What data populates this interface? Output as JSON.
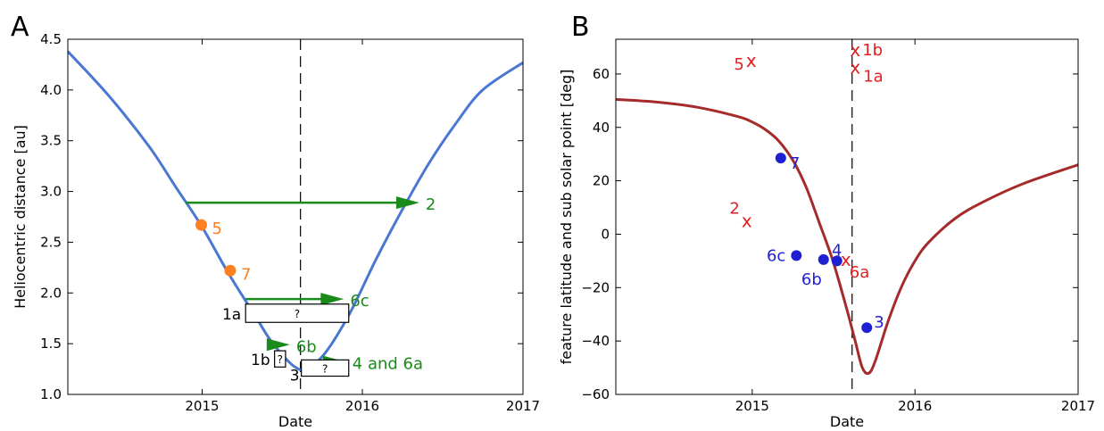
{
  "chart_data": [
    {
      "panel_label": "A",
      "type": "line",
      "xlabel": "Date",
      "ylabel": "Heliocentric distance [au]",
      "xlim": [
        "2014-03-01",
        "2017-01-01"
      ],
      "ylim": [
        1.0,
        4.5
      ],
      "x_ticks": [
        {
          "date": "2015-01-01",
          "label": "2015"
        },
        {
          "date": "2016-01-01",
          "label": "2016"
        },
        {
          "date": "2017-01-01",
          "label": "2017"
        }
      ],
      "y_ticks": [
        "1.0",
        "1.5",
        "2.0",
        "2.5",
        "3.0",
        "3.5",
        "4.0",
        "4.5"
      ],
      "grid": false,
      "series": [
        {
          "color": "#4a77d4",
          "points": [
            [
              "2014-03-01",
              4.38
            ],
            [
              "2014-06-01",
              3.95
            ],
            [
              "2014-09-01",
              3.45
            ],
            [
              "2014-11-01",
              3.05
            ],
            [
              "2015-01-01",
              2.65
            ],
            [
              "2015-03-01",
              2.2
            ],
            [
              "2015-05-01",
              1.78
            ],
            [
              "2015-06-15",
              1.48
            ],
            [
              "2015-08-13",
              1.243
            ],
            [
              "2015-10-01",
              1.37
            ],
            [
              "2015-12-01",
              1.78
            ],
            [
              "2016-02-01",
              2.33
            ],
            [
              "2016-04-01",
              2.82
            ],
            [
              "2016-06-01",
              3.28
            ],
            [
              "2016-08-01",
              3.67
            ],
            [
              "2016-10-01",
              4.0
            ],
            [
              "2017-01-01",
              4.27
            ]
          ]
        }
      ],
      "perihelion_line": "2015-08-13",
      "points": [
        {
          "label": "5",
          "date": "2014-12-30",
          "y": 2.67,
          "color": "#ff8020"
        },
        {
          "label": "7",
          "date": "2015-03-06",
          "y": 2.22,
          "color": "#ff8020"
        }
      ],
      "arrows": [
        {
          "label": "2",
          "start": "2014-11-25",
          "end": "2016-05-10",
          "y": 2.89,
          "color": "#1a8a1a"
        },
        {
          "label": "6c",
          "start": "2015-04-10",
          "end": "2015-11-20",
          "y": 1.94,
          "color": "#1a8a1a"
        },
        {
          "label": "6b",
          "start": "2015-06-05",
          "end": "2015-07-20",
          "y": 1.49,
          "color": "#1a8a1a"
        },
        {
          "label": "4 and 6a",
          "start": "2015-08-15",
          "end": "2015-11-25",
          "y": 1.32,
          "color": "#1a8a1a"
        }
      ],
      "boxes": [
        {
          "label": "1a",
          "text": "?",
          "start": "2015-04-10",
          "end": "2015-12-01",
          "ymin": 1.71,
          "ymax": 1.89
        },
        {
          "label": "1b",
          "text": "?",
          "start": "2015-06-15",
          "end": "2015-07-10",
          "ymin": 1.27,
          "ymax": 1.43
        },
        {
          "label": "3",
          "text": "?",
          "start": "2015-08-15",
          "end": "2015-12-01",
          "ymin": 1.18,
          "ymax": 1.34
        }
      ]
    },
    {
      "panel_label": "B",
      "type": "line",
      "xlabel": "Date",
      "ylabel": "feature latitude and sub solar point [deg]",
      "xlim": [
        "2014-03-01",
        "2017-01-01"
      ],
      "ylim": [
        -60,
        73
      ],
      "x_ticks": [
        {
          "date": "2015-01-01",
          "label": "2015"
        },
        {
          "date": "2016-01-01",
          "label": "2016"
        },
        {
          "date": "2017-01-01",
          "label": "2017"
        }
      ],
      "y_ticks": [
        "−60",
        "−40",
        "−20",
        "0",
        "20",
        "40",
        "60"
      ],
      "grid": false,
      "series": [
        {
          "color": "#a52a2a",
          "points": [
            [
              "2014-03-01",
              50.5
            ],
            [
              "2014-06-01",
              49.5
            ],
            [
              "2014-09-01",
              47.5
            ],
            [
              "2014-12-01",
              44.0
            ],
            [
              "2015-01-01",
              42.0
            ],
            [
              "2015-02-01",
              39.0
            ],
            [
              "2015-03-01",
              35.0
            ],
            [
              "2015-04-01",
              28.0
            ],
            [
              "2015-05-01",
              18.0
            ],
            [
              "2015-06-01",
              4.0
            ],
            [
              "2015-07-01",
              -10.0
            ],
            [
              "2015-08-01",
              -28.0
            ],
            [
              "2015-08-20",
              -40.0
            ],
            [
              "2015-09-05",
              -50.0
            ],
            [
              "2015-09-20",
              -52.0
            ],
            [
              "2015-10-05",
              -47.0
            ],
            [
              "2015-11-01",
              -33.0
            ],
            [
              "2015-12-01",
              -20.0
            ],
            [
              "2016-01-01",
              -10.0
            ],
            [
              "2016-02-01",
              -3.0
            ],
            [
              "2016-04-01",
              6.0
            ],
            [
              "2016-06-01",
              12.0
            ],
            [
              "2016-09-01",
              19.0
            ],
            [
              "2017-01-01",
              26.0
            ]
          ]
        }
      ],
      "perihelion_line": "2015-08-13",
      "dots": [
        {
          "label": "7",
          "date": "2015-03-06",
          "y": 28.5,
          "color": "#1f1fd4"
        },
        {
          "label": "6c",
          "date": "2015-04-10",
          "y": -8.0,
          "color": "#1f1fd4"
        },
        {
          "label": "6b",
          "date": "2015-06-10",
          "y": -9.5,
          "color": "#1f1fd4"
        },
        {
          "label": "4",
          "date": "2015-07-10",
          "y": -10.0,
          "color": "#1f1fd4"
        },
        {
          "label": "3",
          "date": "2015-09-15",
          "y": -35.0,
          "color": "#1f1fd4"
        }
      ],
      "crosses": [
        {
          "label": "5",
          "date": "2014-12-30",
          "y": 65.0,
          "color": "#e02020"
        },
        {
          "label": "1b",
          "date": "2015-08-20",
          "y": 69.0,
          "color": "#e02020"
        },
        {
          "label": "1a",
          "date": "2015-08-20",
          "y": 62.5,
          "color": "#e02020"
        },
        {
          "label": "2",
          "date": "2014-12-20",
          "y": 5.0,
          "color": "#e02020"
        },
        {
          "label": "6a",
          "date": "2015-07-30",
          "y": -9.5,
          "color": "#e02020"
        }
      ]
    }
  ]
}
